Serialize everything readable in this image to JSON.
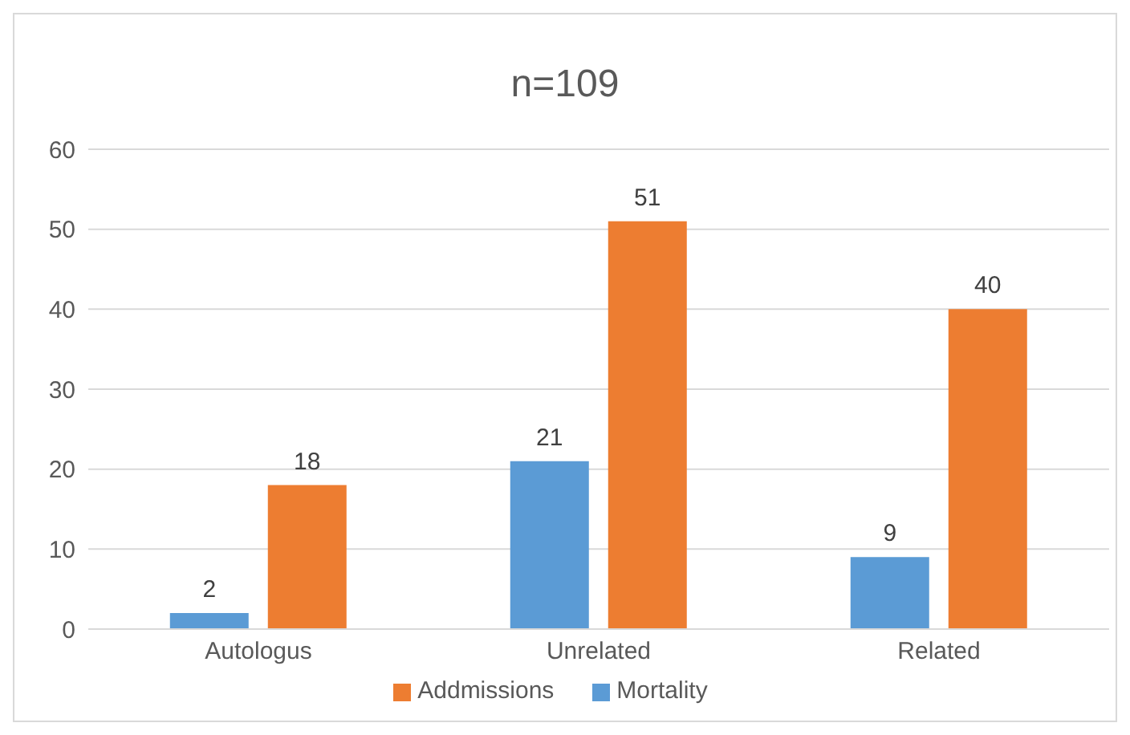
{
  "chart_data": {
    "type": "bar",
    "title": "n=109",
    "categories": [
      "Autologus",
      "Unrelated",
      "Related"
    ],
    "series": [
      {
        "name": "Mortality",
        "color": "#5b9bd5",
        "values": [
          2,
          21,
          9
        ]
      },
      {
        "name": "Addmissions",
        "color": "#ed7d31",
        "values": [
          18,
          51,
          40
        ]
      }
    ],
    "ylim": [
      0,
      60
    ],
    "yticks": [
      0,
      10,
      20,
      30,
      40,
      50,
      60
    ],
    "grid": "y",
    "legend": "bottom",
    "data_labels": true
  }
}
